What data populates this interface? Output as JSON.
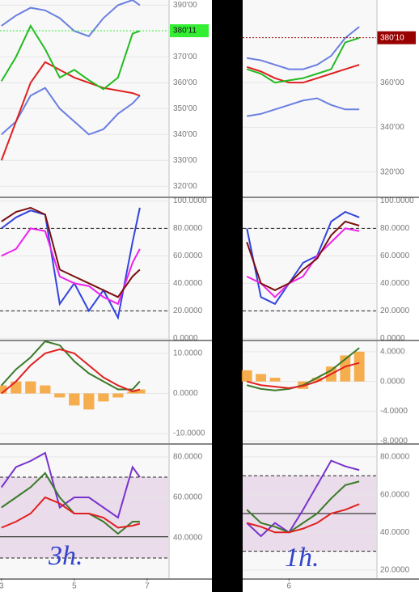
{
  "chart_data": [
    {
      "type": "line",
      "xlim": [
        2.96,
        7.58
      ],
      "ylim": [
        316,
        392
      ],
      "yticks": [
        {
          "value": 390,
          "label": "390'00"
        },
        {
          "value": 370,
          "label": "370'00"
        },
        {
          "value": 360,
          "label": "360'00"
        },
        {
          "value": 350,
          "label": "350'00"
        },
        {
          "value": 340,
          "label": "340'00"
        },
        {
          "value": 330,
          "label": "330'00"
        },
        {
          "value": 320,
          "label": "320'00"
        }
      ],
      "last_price": {
        "value": 380.11,
        "label": "380'11"
      },
      "last_price_color": "#33ee33",
      "x": [
        3.0,
        3.4,
        3.8,
        4.2,
        4.6,
        5.0,
        5.4,
        5.8,
        6.2,
        6.6,
        6.8
      ],
      "series": [
        {
          "color": "#6a7fe0",
          "values": [
            382,
            386,
            389,
            388,
            385,
            380,
            378,
            385,
            390,
            392,
            390
          ]
        },
        {
          "color": "#6a7fe0",
          "values": [
            340,
            345,
            355,
            358,
            350,
            345,
            340,
            342,
            348,
            352,
            355
          ]
        },
        {
          "color": "#e02020",
          "values": [
            330,
            345,
            360,
            368,
            365,
            362,
            360,
            358,
            357,
            356,
            355
          ]
        },
        {
          "color": "#22bb22",
          "values": [
            360.6,
            370,
            382,
            373,
            362,
            365,
            361,
            357.5,
            362,
            379,
            380
          ]
        }
      ]
    },
    {
      "type": "line",
      "xlim": [
        2.96,
        7.58
      ],
      "ylim": [
        -1,
        102
      ],
      "yticks": [
        {
          "value": 100,
          "label": "100.0000"
        },
        {
          "value": 80,
          "label": "80.0000"
        },
        {
          "value": 60,
          "label": "60.0000"
        },
        {
          "value": 40,
          "label": "40.0000"
        },
        {
          "value": 20,
          "label": "20.0000"
        },
        {
          "value": 0,
          "label": "0.0000"
        }
      ],
      "hlines": [
        80,
        20
      ],
      "x": [
        3.0,
        3.4,
        3.8,
        4.2,
        4.6,
        5.0,
        5.4,
        5.8,
        6.2,
        6.6,
        6.8
      ],
      "series": [
        {
          "color": "#3344dd",
          "values": [
            80,
            88,
            93,
            90,
            25,
            40,
            20,
            35,
            15,
            70,
            95
          ]
        },
        {
          "color": "#ee22ee",
          "values": [
            60,
            65,
            80,
            78,
            45,
            40,
            38,
            30,
            25,
            55,
            65
          ]
        },
        {
          "color": "#7a1010",
          "values": [
            85,
            92,
            95,
            90,
            50,
            45,
            40,
            35,
            30,
            45,
            50
          ]
        }
      ]
    },
    {
      "type": "line",
      "xlim": [
        2.96,
        7.58
      ],
      "ylim": [
        -12.4,
        13
      ],
      "yticks": [
        {
          "value": 10,
          "label": "10.0000"
        },
        {
          "value": 0,
          "label": "0.0000"
        },
        {
          "value": -10,
          "label": "-10.0000"
        }
      ],
      "x": [
        3.0,
        3.4,
        3.8,
        4.2,
        4.6,
        5.0,
        5.4,
        5.8,
        6.2,
        6.6,
        6.8
      ],
      "series": [
        {
          "style": "bar",
          "color": "#f5a030",
          "values": [
            2,
            3,
            3,
            2,
            -1,
            -3,
            -4,
            -2,
            -1,
            0.5,
            1
          ]
        },
        {
          "color": "#3a7a2a",
          "values": [
            2,
            6,
            9,
            13,
            12,
            8,
            5,
            3,
            1,
            1,
            3
          ]
        },
        {
          "color": "#e02020",
          "values": [
            0,
            3,
            7,
            10,
            11,
            10,
            7,
            4,
            2,
            0.5,
            1
          ]
        }
      ]
    },
    {
      "type": "line",
      "xlim": [
        2.96,
        7.58
      ],
      "ylim": [
        20,
        86
      ],
      "yticks": [
        {
          "value": 80,
          "label": "80.0000"
        },
        {
          "value": 60,
          "label": "60.0000"
        },
        {
          "value": 40,
          "label": "40.0000"
        }
      ],
      "band": [
        30,
        70
      ],
      "hlines": [
        70,
        30
      ],
      "baseline": 40.5,
      "xticks": [
        3,
        5,
        7
      ],
      "annotation": "3h.",
      "x": [
        3.0,
        3.4,
        3.8,
        4.2,
        4.6,
        5.0,
        5.4,
        5.8,
        6.2,
        6.6,
        6.8
      ],
      "series": [
        {
          "color": "#7733cc",
          "values": [
            65,
            75,
            78,
            82,
            55,
            60,
            60,
            55,
            50,
            75,
            70
          ]
        },
        {
          "color": "#3a7a2a",
          "values": [
            55,
            60,
            65,
            72,
            60,
            52,
            52,
            48,
            42,
            48,
            48
          ]
        },
        {
          "color": "#e02020",
          "values": [
            45,
            48,
            52,
            60,
            57,
            52,
            52,
            50,
            45,
            46,
            47
          ]
        }
      ]
    },
    {
      "type": "line",
      "xlim": [
        5.67,
        6.62
      ],
      "ylim": [
        309,
        397
      ],
      "yticks": [
        {
          "value": 360,
          "label": "360'00"
        },
        {
          "value": 340,
          "label": "340'00"
        },
        {
          "value": 320,
          "label": "320'00"
        }
      ],
      "last_price": {
        "value": 380.1,
        "label": "380'10"
      },
      "last_price_color": "#990000",
      "x": [
        5.7,
        5.8,
        5.9,
        6.0,
        6.1,
        6.2,
        6.3,
        6.4,
        6.5
      ],
      "series": [
        {
          "color": "#6a7fe0",
          "values": [
            371,
            370,
            368,
            366,
            366,
            368,
            372,
            380,
            385
          ]
        },
        {
          "color": "#6a7fe0",
          "values": [
            345,
            346,
            348,
            350,
            352,
            353,
            350,
            348,
            348
          ]
        },
        {
          "color": "#e02020",
          "values": [
            367,
            365,
            362,
            360,
            360,
            362,
            364,
            366,
            368
          ]
        },
        {
          "color": "#22bb22",
          "values": [
            366,
            364,
            360,
            361,
            362,
            364,
            366,
            378,
            380
          ]
        }
      ]
    },
    {
      "type": "line",
      "xlim": [
        5.67,
        6.62
      ],
      "ylim": [
        -1,
        102
      ],
      "yticks": [
        {
          "value": 100,
          "label": "100.0000"
        },
        {
          "value": 80,
          "label": "80.0000"
        },
        {
          "value": 60,
          "label": "60.0000"
        },
        {
          "value": 40,
          "label": "40.0000"
        },
        {
          "value": 20,
          "label": "20.0000"
        },
        {
          "value": 0,
          "label": "0.0000"
        }
      ],
      "hlines": [
        80,
        20
      ],
      "x": [
        5.7,
        5.8,
        5.9,
        6.0,
        6.1,
        6.2,
        6.3,
        6.4,
        6.5
      ],
      "series": [
        {
          "color": "#3344dd",
          "values": [
            80,
            30,
            25,
            40,
            55,
            60,
            85,
            92,
            88
          ]
        },
        {
          "color": "#ee22ee",
          "values": [
            45,
            40,
            30,
            40,
            45,
            60,
            70,
            80,
            78
          ]
        },
        {
          "color": "#7a1010",
          "values": [
            70,
            40,
            35,
            40,
            50,
            58,
            75,
            85,
            82
          ]
        }
      ]
    },
    {
      "type": "line",
      "xlim": [
        5.67,
        6.62
      ],
      "ylim": [
        -8.3,
        5.4
      ],
      "yticks": [
        {
          "value": 4,
          "label": "4.0000"
        },
        {
          "value": 0,
          "label": "0.0000"
        },
        {
          "value": -4,
          "label": "-4.0000"
        },
        {
          "value": -8,
          "label": "-8.0000"
        }
      ],
      "x": [
        5.7,
        5.8,
        5.9,
        6.0,
        6.1,
        6.2,
        6.3,
        6.4,
        6.5
      ],
      "series": [
        {
          "style": "bar",
          "color": "#f5a030",
          "values": [
            1.5,
            1,
            0.5,
            0,
            -1,
            0.5,
            2,
            3.5,
            4
          ]
        },
        {
          "color": "#3a7a2a",
          "values": [
            -0.5,
            -1,
            -1.2,
            -1,
            -0.5,
            0.5,
            1.5,
            3,
            4.5
          ]
        },
        {
          "color": "#e02020",
          "values": [
            0,
            -0.5,
            -0.7,
            -0.9,
            -0.6,
            0,
            1,
            2,
            2.5
          ]
        }
      ]
    },
    {
      "type": "line",
      "xlim": [
        5.67,
        6.62
      ],
      "ylim": [
        15.7,
        86.4
      ],
      "yticks": [
        {
          "value": 80,
          "label": "80.0000"
        },
        {
          "value": 60,
          "label": "60.0000"
        },
        {
          "value": 40,
          "label": "40.0000"
        },
        {
          "value": 20,
          "label": "20.0000"
        }
      ],
      "band": [
        30,
        70
      ],
      "hlines": [
        70,
        30
      ],
      "baseline": 50,
      "xticks": [
        6
      ],
      "annotation": "1h.",
      "x": [
        5.7,
        5.8,
        5.9,
        6.0,
        6.1,
        6.2,
        6.3,
        6.4,
        6.5
      ],
      "series": [
        {
          "color": "#7733cc",
          "values": [
            45,
            38,
            45,
            40,
            52,
            65,
            78,
            75,
            73
          ]
        },
        {
          "color": "#3a7a2a",
          "values": [
            52,
            45,
            43,
            40,
            45,
            50,
            58,
            65,
            67
          ]
        },
        {
          "color": "#e02020",
          "values": [
            45,
            43,
            40,
            40,
            42,
            45,
            50,
            52,
            55
          ]
        }
      ]
    }
  ]
}
